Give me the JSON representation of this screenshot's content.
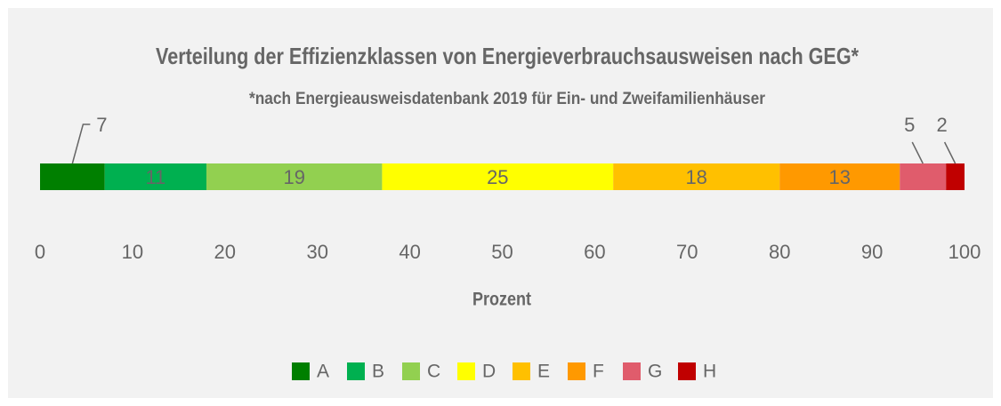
{
  "chart_data": {
    "type": "bar",
    "orientation": "horizontal",
    "stacked": true,
    "title": "Verteilung der Effizienzklassen von Energieverbrauchsausweisen nach GEG*",
    "subtitle": "*nach Energieausweisdatenbank 2019 für Ein- und Zweifamilienhäuser",
    "xlabel": "Prozent",
    "xlim": [
      0,
      100
    ],
    "xticks": [
      0,
      10,
      20,
      30,
      40,
      50,
      60,
      70,
      80,
      90,
      100
    ],
    "series": [
      {
        "name": "A",
        "color": "#007f00",
        "values": [
          7
        ]
      },
      {
        "name": "B",
        "color": "#00b050",
        "values": [
          11
        ]
      },
      {
        "name": "C",
        "color": "#92d050",
        "values": [
          19
        ]
      },
      {
        "name": "D",
        "color": "#ffff00",
        "values": [
          25
        ]
      },
      {
        "name": "E",
        "color": "#ffc000",
        "values": [
          18
        ]
      },
      {
        "name": "F",
        "color": "#ff9900",
        "values": [
          13
        ]
      },
      {
        "name": "G",
        "color": "#e05c6c",
        "values": [
          5
        ]
      },
      {
        "name": "H",
        "color": "#c00000",
        "values": [
          2
        ]
      }
    ],
    "legend": "bottom"
  }
}
